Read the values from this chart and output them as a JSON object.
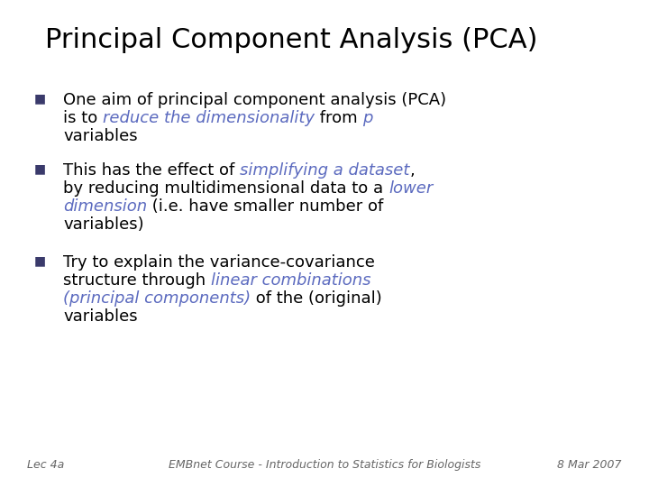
{
  "title": "Principal Component Analysis (PCA)",
  "background_color": "#ffffff",
  "title_color": "#000000",
  "highlight_color": "#5b6abf",
  "black": "#000000",
  "bullet_color": "#3a3a6b",
  "footer_color": "#666666",
  "title_fontsize": 22,
  "body_fontsize": 13,
  "footer_fontsize": 9,
  "bullet_char": "■",
  "footer_left": "Lec 4a",
  "footer_center": "EMBnet Course - Introduction to Statistics for Biologists",
  "footer_right": "8 Mar 2007"
}
